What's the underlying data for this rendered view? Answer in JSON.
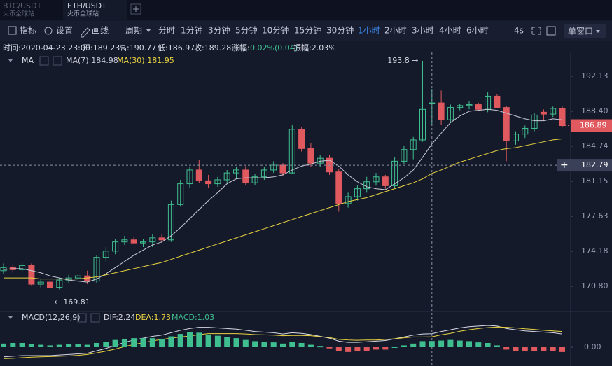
{
  "tabs": [
    {
      "symbol": "BTC/USDT",
      "exchange": "火币全球站"
    },
    {
      "symbol": "ETH/USDT",
      "exchange": "火币全球站"
    }
  ],
  "toolbar": {
    "tools": [
      "指标",
      "设置",
      "画线"
    ],
    "period_label": "周期",
    "periods": [
      "分时",
      "1分钟",
      "3分钟",
      "5分钟",
      "10分钟",
      "15分钟",
      "30分钟",
      "1小时",
      "2小时",
      "3小时",
      "4小时",
      "6小时"
    ],
    "active_period_index": 7,
    "interval": "4s",
    "window": "单窗口"
  },
  "info": {
    "time": "时间:2020-04-23 23:00",
    "open": "开:189.23",
    "high": "高:190.77",
    "low": "低:186.97",
    "close": "收:189.28",
    "change_label": "涨幅:",
    "change": "0.02%(0.04)",
    "amplitude": "振幅:2.03%"
  },
  "chart_data": [
    {
      "type": "candlestick",
      "indicator_label": "MA",
      "log": true,
      "ylim": [
        168.41,
        194.71
      ],
      "yticks": [
        192.13,
        {
          "value": 188.4,
          "label": "188.40"
        },
        184.74,
        181.15,
        177.63,
        174.18,
        {
          "value": 170.8,
          "label": "170.80"
        }
      ],
      "up_color": "#3fbf8f",
      "down_color": "#e0595f",
      "open": [
        172.3,
        172.6,
        172.4,
        172.8,
        171.0,
        171.2,
        170.7,
        171.4,
        171.6,
        171.8,
        171.3,
        173.6,
        174.2,
        175.1,
        175.3,
        175.0,
        175.1,
        175.5,
        175.3,
        178.8,
        180.9,
        182.3,
        181.2,
        180.9,
        181.3,
        182.0,
        182.3,
        181.0,
        181.6,
        182.3,
        182.8,
        182.0,
        186.5,
        184.5,
        183.0,
        183.5,
        182.1,
        178.9,
        179.6,
        180.4,
        181.1,
        181.6,
        180.7,
        183.2,
        184.4,
        185.4,
        189.23,
        189.28,
        187.5,
        188.8,
        189.0,
        189.1,
        188.6,
        190.0,
        188.8,
        185.3,
        186.0,
        186.6,
        188.3,
        188.1,
        188.7
      ],
      "high": [
        173.0,
        172.9,
        173.1,
        173.0,
        171.5,
        171.5,
        171.6,
        171.9,
        172.0,
        172.3,
        173.8,
        174.6,
        175.4,
        175.7,
        175.6,
        175.4,
        175.9,
        175.9,
        179.2,
        181.3,
        182.6,
        183.3,
        181.8,
        181.6,
        182.3,
        182.6,
        182.7,
        181.9,
        182.6,
        183.2,
        183.0,
        187.0,
        186.7,
        185.1,
        183.8,
        183.8,
        182.4,
        180.0,
        180.8,
        181.6,
        182.0,
        181.8,
        183.6,
        184.8,
        185.7,
        193.8,
        190.77,
        190.6,
        189.1,
        189.2,
        189.5,
        189.3,
        190.4,
        190.2,
        189.0,
        186.3,
        186.9,
        188.2,
        188.6,
        188.9,
        188.9
      ],
      "low": [
        172.0,
        172.1,
        172.2,
        170.9,
        170.7,
        169.81,
        170.5,
        171.1,
        171.3,
        171.0,
        171.1,
        173.2,
        173.9,
        174.8,
        174.9,
        174.6,
        174.6,
        175.0,
        175.1,
        178.6,
        180.5,
        181.0,
        180.5,
        180.6,
        181.0,
        181.4,
        180.8,
        180.8,
        181.3,
        182.0,
        181.7,
        181.9,
        184.2,
        182.6,
        182.6,
        181.8,
        178.1,
        178.5,
        179.2,
        180.0,
        180.7,
        180.4,
        180.5,
        182.9,
        183.4,
        185.2,
        186.97,
        187.0,
        187.2,
        188.5,
        188.6,
        188.5,
        188.3,
        188.7,
        183.2,
        184.9,
        185.6,
        186.3,
        187.5,
        187.8,
        186.7
      ],
      "close": [
        172.6,
        172.4,
        172.8,
        171.0,
        171.2,
        170.7,
        171.4,
        171.6,
        171.8,
        171.3,
        173.6,
        174.2,
        175.1,
        175.3,
        175.0,
        175.1,
        175.5,
        175.3,
        178.8,
        180.9,
        182.3,
        181.2,
        180.9,
        181.3,
        182.0,
        182.3,
        181.0,
        181.6,
        182.3,
        182.8,
        182.0,
        186.5,
        184.5,
        183.0,
        183.5,
        182.1,
        178.9,
        179.6,
        180.4,
        181.1,
        181.6,
        180.7,
        183.2,
        184.4,
        185.4,
        188.6,
        189.28,
        187.5,
        188.8,
        189.0,
        189.1,
        188.6,
        190.0,
        188.8,
        185.3,
        186.0,
        186.6,
        188.0,
        188.1,
        188.7,
        186.89
      ],
      "series": [
        {
          "name": "MA(7):184.98",
          "color": "#c9cad8",
          "values": [
            172.4,
            172.5,
            172.5,
            172.3,
            172.1,
            171.8,
            171.6,
            171.4,
            171.3,
            171.2,
            171.5,
            172.0,
            172.6,
            173.2,
            173.8,
            174.3,
            174.8,
            175.1,
            175.7,
            176.5,
            177.4,
            178.3,
            179.2,
            180.0,
            180.9,
            181.4,
            181.5,
            181.5,
            181.5,
            181.6,
            181.8,
            182.3,
            182.7,
            182.9,
            183.2,
            183.3,
            182.7,
            181.8,
            181.1,
            180.6,
            180.4,
            180.3,
            180.9,
            181.5,
            182.3,
            183.6,
            184.98,
            186.1,
            187.2,
            187.9,
            188.4,
            188.5,
            188.6,
            188.5,
            188.2,
            187.9,
            187.6,
            187.4,
            187.4,
            187.6,
            187.5
          ]
        },
        {
          "name": "MA(30):181.95",
          "color": "#e8d33f",
          "values": [
            171.6,
            171.6,
            171.6,
            171.6,
            171.5,
            171.5,
            171.5,
            171.5,
            171.5,
            171.6,
            171.7,
            171.9,
            172.1,
            172.3,
            172.5,
            172.7,
            172.9,
            173.1,
            173.4,
            173.7,
            174.0,
            174.3,
            174.6,
            174.9,
            175.2,
            175.5,
            175.8,
            176.1,
            176.4,
            176.7,
            177.0,
            177.3,
            177.6,
            177.9,
            178.2,
            178.5,
            178.8,
            179.1,
            179.3,
            179.5,
            179.8,
            180.1,
            180.4,
            180.7,
            181.0,
            181.4,
            181.95,
            182.3,
            182.7,
            183.1,
            183.4,
            183.7,
            184.0,
            184.3,
            184.5,
            184.6,
            184.8,
            185.0,
            185.2,
            185.4,
            185.5
          ]
        }
      ],
      "annotations": [
        {
          "label": "193.8 →",
          "value": 193.8
        },
        {
          "label": "← 169.81",
          "value": 169.81
        }
      ],
      "last_price": 186.89,
      "crosshair_price": 182.79
    },
    {
      "type": "macd",
      "title": "MACD(12,26,9)",
      "ylim": [
        -3.14,
        5.7
      ],
      "yticks": [
        {
          "value": 0,
          "label": "0.00"
        }
      ],
      "negative_color": "#e0595f",
      "series": [
        {
          "name": "DIF:2.24",
          "color": "#d8d8e4",
          "values": [
            -1.6,
            -1.5,
            -1.4,
            -1.4,
            -1.4,
            -1.4,
            -1.3,
            -1.2,
            -1.1,
            -1.0,
            -0.6,
            -0.2,
            0.3,
            0.8,
            1.2,
            1.5,
            1.8,
            2.0,
            2.4,
            2.8,
            3.1,
            3.3,
            3.3,
            3.2,
            3.1,
            3.0,
            2.8,
            2.6,
            2.5,
            2.4,
            2.2,
            2.4,
            2.3,
            2.1,
            1.8,
            1.5,
            1.0,
            0.8,
            0.8,
            0.9,
            1.0,
            1.1,
            1.4,
            1.7,
            2.0,
            2.2,
            2.24,
            2.6,
            2.9,
            3.2,
            3.4,
            3.5,
            3.6,
            3.5,
            3.1,
            2.9,
            2.7,
            2.6,
            2.5,
            2.4,
            2.2
          ]
        },
        {
          "name": "DEA:1.73",
          "color": "#e8d33f",
          "values": [
            -1.9,
            -1.85,
            -1.75,
            -1.65,
            -1.6,
            -1.55,
            -1.5,
            -1.45,
            -1.35,
            -1.2,
            -0.95,
            -0.65,
            -0.3,
            0.1,
            0.45,
            0.75,
            1.05,
            1.3,
            1.5,
            1.7,
            1.85,
            2.1,
            2.25,
            2.25,
            2.25,
            2.25,
            2.2,
            2.1,
            2.05,
            2.0,
            1.9,
            1.95,
            1.95,
            1.9,
            1.75,
            1.6,
            1.3,
            1.2,
            1.15,
            1.2,
            1.2,
            1.3,
            1.4,
            1.55,
            1.7,
            1.7,
            1.73,
            2.05,
            2.3,
            2.65,
            2.9,
            3.1,
            3.25,
            3.35,
            3.3,
            3.2,
            3.05,
            2.95,
            2.8,
            2.7,
            2.6
          ]
        },
        {
          "name": "MACD:1.03",
          "color": "#3fbf8f",
          "kind": "bar",
          "values": [
            0.6,
            0.7,
            0.7,
            0.5,
            0.4,
            0.3,
            0.4,
            0.5,
            0.5,
            0.4,
            0.7,
            0.9,
            1.2,
            1.4,
            1.5,
            1.5,
            1.5,
            1.4,
            1.8,
            2.2,
            2.5,
            2.4,
            2.1,
            1.9,
            1.7,
            1.5,
            1.2,
            1.0,
            0.9,
            0.8,
            0.6,
            0.9,
            0.7,
            0.4,
            0.1,
            -0.2,
            -0.6,
            -0.8,
            -0.7,
            -0.6,
            -0.4,
            -0.4,
            0.0,
            0.3,
            0.6,
            1.0,
            1.03,
            1.1,
            1.2,
            1.1,
            1.0,
            0.8,
            0.7,
            0.3,
            -0.4,
            -0.6,
            -0.7,
            -0.7,
            -0.6,
            -0.6,
            -0.8
          ]
        }
      ]
    }
  ]
}
